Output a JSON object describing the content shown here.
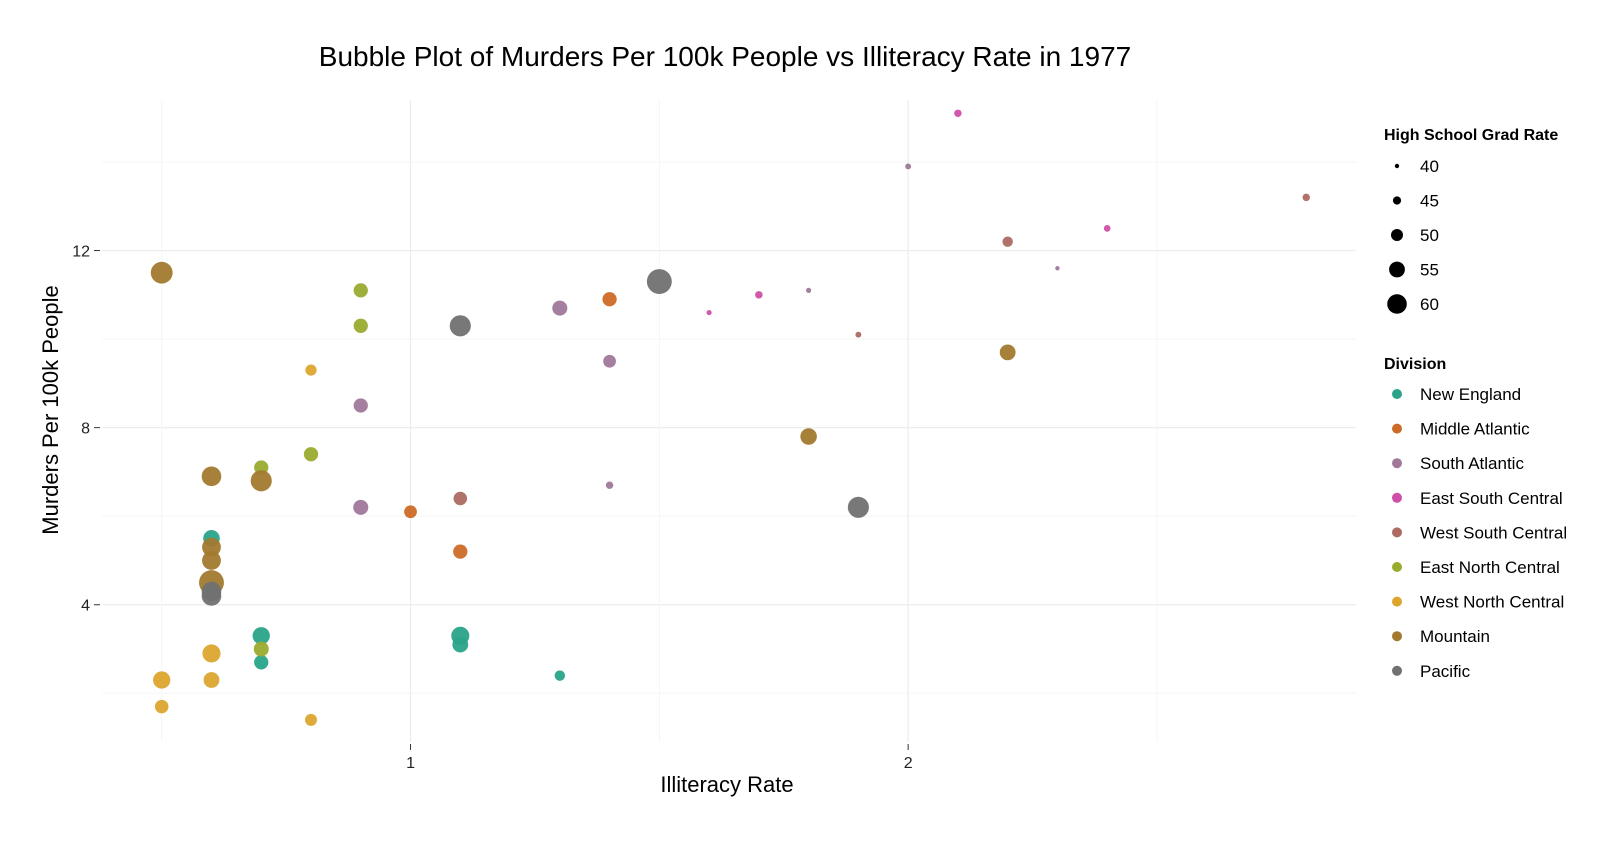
{
  "chart_data": {
    "type": "scatter",
    "title": "Bubble Plot of Murders Per 100k People vs Illiteracy Rate in 1977",
    "xlabel": "Illiteracy Rate",
    "ylabel": "Murders Per 100k People",
    "x_ticks": [
      1,
      2
    ],
    "y_ticks": [
      4,
      8,
      12
    ],
    "xlim": [
      0.38,
      2.9
    ],
    "ylim": [
      0.9,
      15.4
    ],
    "grid": true,
    "legend_position": "right",
    "size_legend": {
      "title": "High School Grad Rate",
      "values": [
        40,
        45,
        50,
        55,
        60
      ]
    },
    "color_legend": {
      "title": "Division",
      "entries": [
        {
          "name": "New England",
          "color": "#2aa38a"
        },
        {
          "name": "Middle Atlantic",
          "color": "#cc6a27"
        },
        {
          "name": "South Atlantic",
          "color": "#a0789a"
        },
        {
          "name": "East South Central",
          "color": "#cf4fa7"
        },
        {
          "name": "West South Central",
          "color": "#ac6a63"
        },
        {
          "name": "East North Central",
          "color": "#9aab2f"
        },
        {
          "name": "West North Central",
          "color": "#dca52e"
        },
        {
          "name": "Mountain",
          "color": "#a2792f"
        },
        {
          "name": "Pacific",
          "color": "#717171"
        }
      ]
    },
    "series": [
      {
        "name": "New England",
        "points": [
          {
            "x": 0.6,
            "y": 5.5,
            "grad": 56
          },
          {
            "x": 0.7,
            "y": 3.3,
            "grad": 57
          },
          {
            "x": 0.7,
            "y": 2.7,
            "grad": 53
          },
          {
            "x": 1.1,
            "y": 3.3,
            "grad": 58
          },
          {
            "x": 1.1,
            "y": 3.1,
            "grad": 55
          },
          {
            "x": 1.3,
            "y": 2.4,
            "grad": 48
          }
        ]
      },
      {
        "name": "Middle Atlantic",
        "points": [
          {
            "x": 1.0,
            "y": 6.1,
            "grad": 51
          },
          {
            "x": 1.1,
            "y": 5.2,
            "grad": 53
          },
          {
            "x": 1.4,
            "y": 10.9,
            "grad": 53
          }
        ]
      },
      {
        "name": "South Atlantic",
        "points": [
          {
            "x": 0.9,
            "y": 8.5,
            "grad": 53
          },
          {
            "x": 0.9,
            "y": 6.2,
            "grad": 54
          },
          {
            "x": 1.3,
            "y": 10.7,
            "grad": 54
          },
          {
            "x": 1.4,
            "y": 9.5,
            "grad": 51
          },
          {
            "x": 1.4,
            "y": 6.7,
            "grad": 44
          },
          {
            "x": 1.8,
            "y": 11.1,
            "grad": 41
          },
          {
            "x": 2.0,
            "y": 13.9,
            "grad": 42
          },
          {
            "x": 2.3,
            "y": 11.6,
            "grad": 40
          }
        ]
      },
      {
        "name": "East South Central",
        "points": [
          {
            "x": 1.6,
            "y": 10.6,
            "grad": 41
          },
          {
            "x": 1.7,
            "y": 11.0,
            "grad": 44
          },
          {
            "x": 2.1,
            "y": 15.1,
            "grad": 44
          },
          {
            "x": 2.4,
            "y": 12.5,
            "grad": 43
          }
        ]
      },
      {
        "name": "West South Central",
        "points": [
          {
            "x": 1.1,
            "y": 6.4,
            "grad": 52
          },
          {
            "x": 1.9,
            "y": 10.1,
            "grad": 42
          },
          {
            "x": 2.2,
            "y": 12.2,
            "grad": 48
          },
          {
            "x": 2.8,
            "y": 13.2,
            "grad": 44
          }
        ]
      },
      {
        "name": "East North Central",
        "points": [
          {
            "x": 0.7,
            "y": 7.1,
            "grad": 53
          },
          {
            "x": 0.7,
            "y": 3.0,
            "grad": 54
          },
          {
            "x": 0.8,
            "y": 7.4,
            "grad": 53
          },
          {
            "x": 0.9,
            "y": 11.1,
            "grad": 53
          },
          {
            "x": 0.9,
            "y": 10.3,
            "grad": 53
          }
        ]
      },
      {
        "name": "West North Central",
        "points": [
          {
            "x": 0.5,
            "y": 2.3,
            "grad": 57
          },
          {
            "x": 0.5,
            "y": 1.7,
            "grad": 52
          },
          {
            "x": 0.6,
            "y": 2.9,
            "grad": 58
          },
          {
            "x": 0.6,
            "y": 2.3,
            "grad": 55
          },
          {
            "x": 0.8,
            "y": 9.3,
            "grad": 49
          },
          {
            "x": 0.8,
            "y": 1.4,
            "grad": 50
          }
        ]
      },
      {
        "name": "Mountain",
        "points": [
          {
            "x": 0.5,
            "y": 11.5,
            "grad": 63
          },
          {
            "x": 0.6,
            "y": 6.9,
            "grad": 60
          },
          {
            "x": 0.6,
            "y": 5.3,
            "grad": 59
          },
          {
            "x": 0.6,
            "y": 5.0,
            "grad": 59
          },
          {
            "x": 0.6,
            "y": 4.5,
            "grad": 67
          },
          {
            "x": 0.7,
            "y": 6.8,
            "grad": 62
          },
          {
            "x": 1.8,
            "y": 7.8,
            "grad": 56
          },
          {
            "x": 2.2,
            "y": 9.7,
            "grad": 55
          }
        ]
      },
      {
        "name": "Pacific",
        "points": [
          {
            "x": 0.6,
            "y": 4.3,
            "grad": 60
          },
          {
            "x": 0.6,
            "y": 4.2,
            "grad": 60
          },
          {
            "x": 1.1,
            "y": 10.3,
            "grad": 62
          },
          {
            "x": 1.5,
            "y": 11.3,
            "grad": 67
          },
          {
            "x": 1.9,
            "y": 6.2,
            "grad": 62
          }
        ]
      }
    ]
  }
}
